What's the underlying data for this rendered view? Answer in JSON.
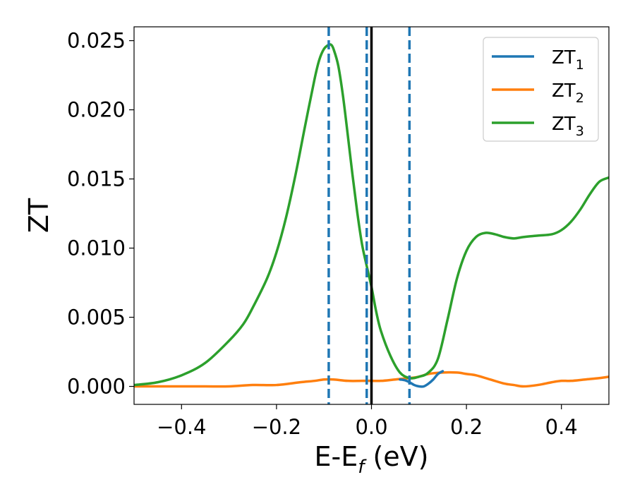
{
  "chart_data": {
    "type": "line",
    "xlabel": "E-E",
    "xlabel_sub": "f",
    "xlabel_unit": " (eV)",
    "ylabel": "ZT",
    "xlim": [
      -0.5,
      0.5
    ],
    "ylim": [
      -0.0013,
      0.026
    ],
    "xticks": [
      -0.4,
      -0.2,
      0.0,
      0.2,
      0.4
    ],
    "xtick_labels": [
      "−0.4",
      "−0.2",
      "0.0",
      "0.2",
      "0.4"
    ],
    "yticks": [
      0.0,
      0.005,
      0.01,
      0.015,
      0.02,
      0.025
    ],
    "ytick_labels": [
      "0.000",
      "0.005",
      "0.010",
      "0.015",
      "0.020",
      "0.025"
    ],
    "grid": false,
    "legend_position": "top-right",
    "vlines": [
      {
        "x": 0.0,
        "style": "solid",
        "color": "#000000"
      },
      {
        "x": -0.09,
        "style": "dashed",
        "color": "#1f77b4"
      },
      {
        "x": -0.01,
        "style": "dashed",
        "color": "#1f77b4"
      },
      {
        "x": 0.08,
        "style": "dashed",
        "color": "#1f77b4"
      }
    ],
    "series": [
      {
        "name": "ZT",
        "sub": "1",
        "color": "#1f77b4",
        "x": [
          0.06,
          0.07,
          0.08,
          0.09,
          0.1,
          0.11,
          0.12,
          0.13,
          0.14,
          0.15
        ],
        "y": [
          0.0005,
          0.00045,
          0.0003,
          0.0001,
          0.0,
          0.0,
          0.0002,
          0.0005,
          0.0009,
          0.0011
        ]
      },
      {
        "name": "ZT",
        "sub": "2",
        "color": "#ff7f0e",
        "x": [
          -0.5,
          -0.45,
          -0.4,
          -0.35,
          -0.3,
          -0.25,
          -0.2,
          -0.15,
          -0.12,
          -0.1,
          -0.08,
          -0.05,
          -0.02,
          0.0,
          0.02,
          0.05,
          0.08,
          0.1,
          0.12,
          0.15,
          0.18,
          0.2,
          0.22,
          0.25,
          0.28,
          0.3,
          0.32,
          0.35,
          0.38,
          0.4,
          0.42,
          0.45,
          0.48,
          0.5
        ],
        "y": [
          0.0,
          0.0,
          0.0,
          0.0,
          0.0,
          0.0001,
          0.0001,
          0.0003,
          0.0004,
          0.0005,
          0.0005,
          0.0004,
          0.0004,
          0.0004,
          0.0004,
          0.0005,
          0.0006,
          0.0007,
          0.0009,
          0.001,
          0.001,
          0.0009,
          0.0008,
          0.0005,
          0.0002,
          0.0001,
          0.0,
          0.0001,
          0.0003,
          0.0004,
          0.0004,
          0.0005,
          0.0006,
          0.0007
        ]
      },
      {
        "name": "ZT",
        "sub": "3",
        "color": "#2ca02c",
        "x": [
          -0.5,
          -0.45,
          -0.4,
          -0.35,
          -0.3,
          -0.27,
          -0.25,
          -0.22,
          -0.2,
          -0.18,
          -0.16,
          -0.14,
          -0.12,
          -0.11,
          -0.1,
          -0.09,
          -0.085,
          -0.08,
          -0.07,
          -0.06,
          -0.05,
          -0.04,
          -0.03,
          -0.02,
          -0.01,
          0.0,
          0.01,
          0.02,
          0.04,
          0.06,
          0.08,
          0.1,
          0.12,
          0.14,
          0.16,
          0.18,
          0.2,
          0.22,
          0.24,
          0.26,
          0.28,
          0.3,
          0.32,
          0.35,
          0.38,
          0.4,
          0.42,
          0.44,
          0.46,
          0.48,
          0.5
        ],
        "y": [
          0.0001,
          0.0003,
          0.0008,
          0.0017,
          0.0033,
          0.0045,
          0.0057,
          0.0078,
          0.0097,
          0.0122,
          0.0153,
          0.0188,
          0.0222,
          0.0236,
          0.0244,
          0.0247,
          0.0247,
          0.0244,
          0.0232,
          0.021,
          0.0182,
          0.0153,
          0.0126,
          0.0103,
          0.0087,
          0.0072,
          0.0054,
          0.004,
          0.0022,
          0.001,
          0.0006,
          0.0007,
          0.001,
          0.002,
          0.0048,
          0.0078,
          0.0098,
          0.0108,
          0.0111,
          0.011,
          0.0108,
          0.0107,
          0.0108,
          0.0109,
          0.011,
          0.0113,
          0.0119,
          0.0128,
          0.0139,
          0.0148,
          0.0151
        ]
      }
    ]
  }
}
